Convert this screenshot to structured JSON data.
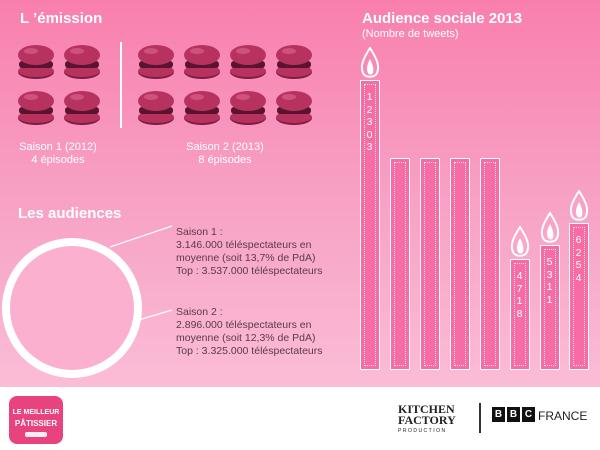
{
  "emission": {
    "title": "L ’émission",
    "season1": {
      "label": "Saison 1 (2012)",
      "episodes": "4 épisodes"
    },
    "season2": {
      "label": "Saison 2 (2013)",
      "episodes": "8 épisodes"
    }
  },
  "audiences": {
    "title": "Les audiences",
    "season1": [
      "Saison 1 :",
      "3.146.000 téléspectateurs en",
      "moyenne (soit 13,7% de PdA)",
      "Top : 3.537.000 téléspectateurs"
    ],
    "season2": [
      "Saison 2 :",
      "2.896.000 téléspectateurs en",
      "moyenne (soit 12,3% de PdA)",
      "Top : 3.325.000 téléspectateurs"
    ]
  },
  "social": {
    "title": "Audience sociale 2013",
    "subtitle": "(Nombre de tweets)"
  },
  "chart_data": {
    "type": "bar",
    "title": "Audience sociale 2013",
    "ylabel": "(Nombre de tweets)",
    "values": [
      12303,
      4718,
      5311,
      6254
    ],
    "value_labels": [
      "12303",
      "4718",
      "5311",
      "6254"
    ],
    "unlabeled_bar_count": 4,
    "color": "#f76ca5"
  },
  "footer": {
    "left_logo": [
      "LE MEILLEUR",
      "PÂTISSIER"
    ],
    "kitchen": [
      "KITCHEN",
      "FACTORY",
      "PRODUCTION"
    ],
    "bbc": [
      "B",
      "B",
      "C"
    ],
    "france": "FRANCE"
  },
  "colors": {
    "background": "#f97fae",
    "macaron": "#b8325f",
    "candle": "#f76ca5",
    "accent_white": "#ffffff"
  }
}
